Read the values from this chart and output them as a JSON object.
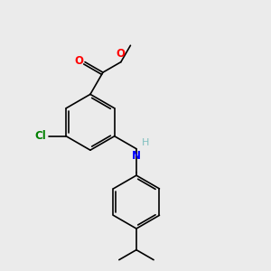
{
  "background_color": "#ebebeb",
  "bond_color": "#000000",
  "line_width": 1.2,
  "atoms": {
    "Cl": {
      "color": "#008000"
    },
    "O": {
      "color": "#ff0000"
    },
    "N": {
      "color": "#0000ff"
    },
    "H": {
      "color": "#7fbfbf"
    }
  },
  "figsize": [
    3.0,
    3.0
  ],
  "dpi": 100
}
